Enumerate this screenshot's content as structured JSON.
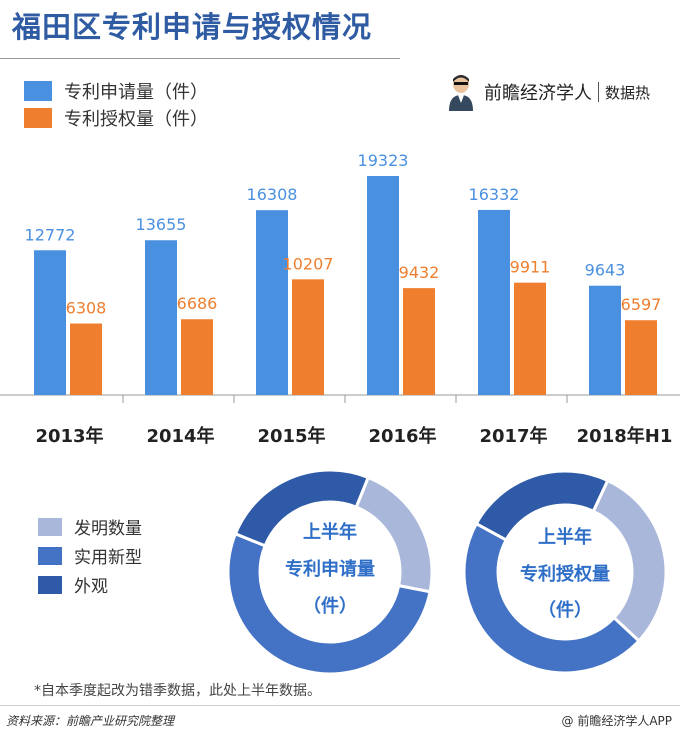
{
  "title": "福田区专利申请与授权情况",
  "legend": {
    "applications": "专利申请量（件）",
    "grants": "专利授权量（件）"
  },
  "brand": {
    "name": "前瞻经济学人",
    "tag": "数据热"
  },
  "colors": {
    "applications": "#4a90e0",
    "grants": "#ef7f2f",
    "title": "#2f5ba3",
    "dark_blue": "#2f5aa8",
    "mid_blue": "#4473c5",
    "light_blue": "#a9b7db"
  },
  "chart_data": [
    {
      "type": "bar",
      "categories": [
        "2013年",
        "2014年",
        "2015年",
        "2016年",
        "2017年",
        "2018年H1"
      ],
      "series": [
        {
          "name": "专利申请量（件）",
          "values": [
            12772,
            13655,
            16308,
            19323,
            16332,
            9643
          ]
        },
        {
          "name": "专利授权量（件）",
          "values": [
            6308,
            6686,
            10207,
            9432,
            9911,
            6597
          ]
        }
      ],
      "ylim": [
        0,
        21000
      ],
      "grid": false
    },
    {
      "type": "pie",
      "title": "上半年专利申请量（件）",
      "labels": [
        "发明数量",
        "实用新型",
        "外观"
      ],
      "values": [
        22,
        53,
        25
      ]
    },
    {
      "type": "pie",
      "title": "上半年专利授权量（件）",
      "labels": [
        "发明数量",
        "实用新型",
        "外观"
      ],
      "values": [
        30,
        46,
        24
      ]
    }
  ],
  "pie_legend": [
    "发明数量",
    "实用新型",
    "外观"
  ],
  "donut1": {
    "line1": "上半年",
    "line2": "专利申请量",
    "line3": "（件）"
  },
  "donut2": {
    "line1": "上半年",
    "line2": "专利授权量",
    "line3": "（件）"
  },
  "note": "*自本季度起改为错季数据，此处上半年数据。",
  "source": "资料来源：前瞻产业研究院整理",
  "copyright": "@ 前瞻经济学人APP"
}
